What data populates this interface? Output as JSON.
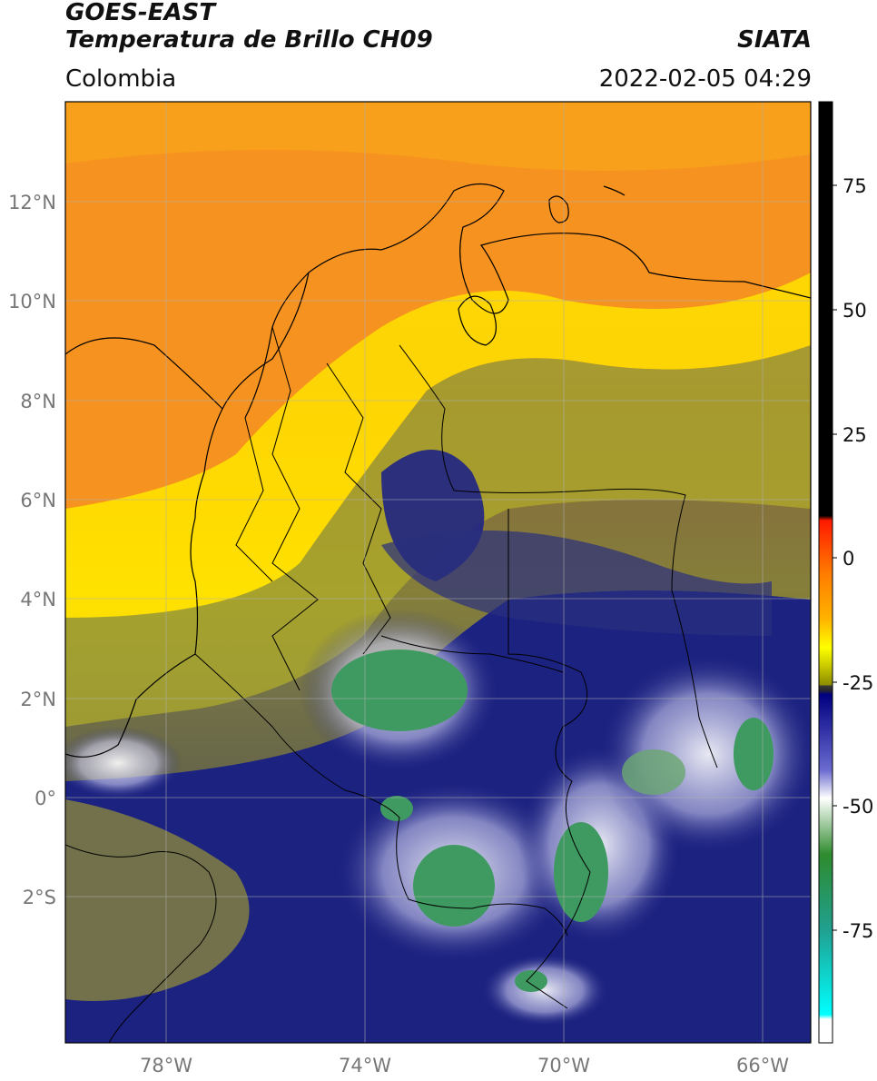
{
  "header": {
    "line1": "GOES-EAST",
    "line2": "Temperatura de Brillo CH09",
    "region": "Colombia",
    "agency": "SIATA",
    "datetime": "2022-02-05 04:29"
  },
  "map": {
    "lon_labels": [
      "78°W",
      "74°W",
      "70°W",
      "66°W"
    ],
    "lat_labels": [
      "12°N",
      "10°N",
      "8°N",
      "6°N",
      "4°N",
      "2°N",
      "0°",
      "2°S"
    ],
    "colors": {
      "warm_orange": "#f7931e",
      "yellow": "#ffe600",
      "olive": "#9a9a2a",
      "navy": "#1a1f7a",
      "white_cloud": "#f2f2f2",
      "green_core": "#3d9a5e",
      "coast": "#000000"
    }
  },
  "colorbar": {
    "tick_labels": [
      "75",
      "50",
      "25",
      "0",
      "-25",
      "-50",
      "-75"
    ],
    "stops": [
      "#000000",
      "#000000",
      "#ff0000",
      "#ff8c00",
      "#ffd700",
      "#ffff00",
      "#8b8b00",
      "#3a3a3a",
      "#000080",
      "#4b4bc8",
      "#ffffff",
      "#2e8b57",
      "#20b2aa",
      "#00ffff",
      "#ffffff"
    ]
  }
}
